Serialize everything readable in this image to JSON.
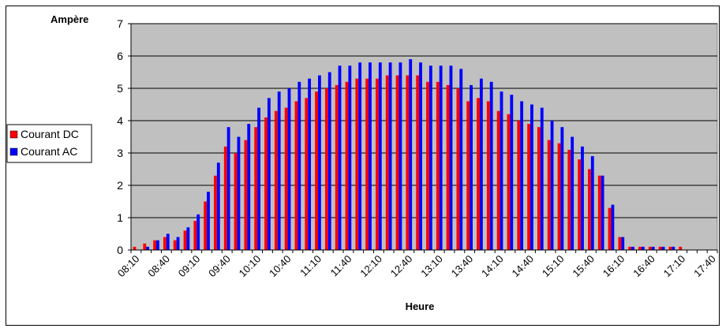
{
  "chart_data": {
    "type": "bar",
    "title": "",
    "ylabel": "Ampère",
    "xlabel": "Heure",
    "ylim": [
      0,
      7
    ],
    "yticks": [
      0,
      1,
      2,
      3,
      4,
      5,
      6,
      7
    ],
    "grid": true,
    "legend_position": "left",
    "x_tick_labels": [
      "08:10",
      "08:40",
      "09:10",
      "09:40",
      "10:10",
      "10:40",
      "11:10",
      "11:40",
      "12:10",
      "12:40",
      "13:10",
      "13:40",
      "14:10",
      "14:40",
      "15:10",
      "15:40",
      "16:10",
      "16:40",
      "17:10",
      "17:40"
    ],
    "categories": [
      "08:10",
      "08:20",
      "08:30",
      "08:40",
      "08:50",
      "09:00",
      "09:10",
      "09:20",
      "09:30",
      "09:40",
      "09:50",
      "10:00",
      "10:10",
      "10:20",
      "10:30",
      "10:40",
      "10:50",
      "11:00",
      "11:10",
      "11:20",
      "11:30",
      "11:40",
      "11:50",
      "12:00",
      "12:10",
      "12:20",
      "12:30",
      "12:40",
      "12:50",
      "13:00",
      "13:10",
      "13:20",
      "13:30",
      "13:40",
      "13:50",
      "14:00",
      "14:10",
      "14:20",
      "14:30",
      "14:40",
      "14:50",
      "15:00",
      "15:10",
      "15:20",
      "15:30",
      "15:40",
      "15:50",
      "16:00",
      "16:10",
      "16:20",
      "16:30",
      "16:40",
      "16:50",
      "17:00",
      "17:10",
      "17:20",
      "17:30",
      "17:40"
    ],
    "series": [
      {
        "name": "Courant DC",
        "color": "#ff0000",
        "values": [
          0.1,
          0.2,
          0.3,
          0.4,
          0.3,
          0.6,
          0.9,
          1.5,
          2.3,
          3.2,
          3.0,
          3.4,
          3.8,
          4.1,
          4.3,
          4.4,
          4.6,
          4.7,
          4.9,
          5.0,
          5.1,
          5.2,
          5.3,
          5.3,
          5.3,
          5.4,
          5.4,
          5.4,
          5.4,
          5.2,
          5.2,
          5.1,
          5.0,
          4.6,
          4.7,
          4.6,
          4.3,
          4.2,
          4.0,
          3.9,
          3.8,
          3.4,
          3.3,
          3.1,
          2.8,
          2.5,
          2.3,
          1.3,
          0.4,
          0.1,
          0.1,
          0.1,
          0.1,
          0.1,
          0.1,
          0.0,
          0.0,
          0.0
        ]
      },
      {
        "name": "Courant AC",
        "color": "#0000ff",
        "values": [
          0.0,
          0.1,
          0.3,
          0.5,
          0.4,
          0.7,
          1.1,
          1.8,
          2.7,
          3.8,
          3.5,
          3.9,
          4.4,
          4.7,
          4.9,
          5.0,
          5.2,
          5.3,
          5.4,
          5.5,
          5.7,
          5.7,
          5.8,
          5.8,
          5.8,
          5.8,
          5.8,
          5.9,
          5.8,
          5.7,
          5.7,
          5.7,
          5.6,
          5.1,
          5.3,
          5.2,
          4.9,
          4.8,
          4.6,
          4.5,
          4.4,
          4.0,
          3.8,
          3.5,
          3.2,
          2.9,
          2.3,
          1.4,
          0.4,
          0.1,
          0.1,
          0.1,
          0.1,
          0.1,
          0.0,
          0.0,
          0.0,
          0.0
        ]
      }
    ]
  }
}
